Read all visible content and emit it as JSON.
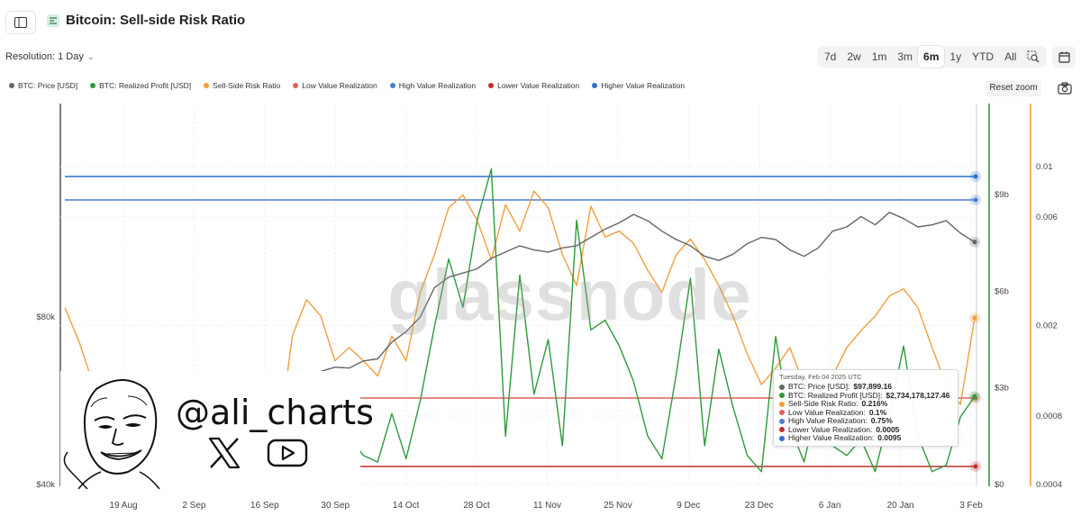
{
  "header": {
    "title": "Bitcoin: Sell-side Risk Ratio",
    "sidebar_toggle_icon": "sidebar-toggle-icon",
    "metric_icon": "metric-icon"
  },
  "controls": {
    "resolution_label": "Resolution: 1 Day",
    "ranges": [
      "7d",
      "2w",
      "1m",
      "3m",
      "6m",
      "1y",
      "YTD",
      "All"
    ],
    "active_range": "6m",
    "zoom_icon": "zoom-select-icon",
    "calendar_icon": "calendar-icon",
    "reset_zoom": "Reset zoom",
    "camera_icon": "camera-icon"
  },
  "legend": [
    {
      "label": "BTC: Price [USD]",
      "color": "#666666"
    },
    {
      "label": "BTC: Realized Profit [USD]",
      "color": "#2e9a3a"
    },
    {
      "label": "Sell-Side Risk Ratio",
      "color": "#f29e3d"
    },
    {
      "label": "Low Value Realization",
      "color": "#e0605a"
    },
    {
      "label": "High Value Realization",
      "color": "#4a7fd4"
    },
    {
      "label": "Lower Value Realization",
      "color": "#c0312b"
    },
    {
      "label": "Higher Value Realization",
      "color": "#2f6fcf"
    }
  ],
  "watermark": "glassnode",
  "tooltip": {
    "date": "Tuesday, Feb 04 2025 UTC",
    "rows": [
      {
        "label": "BTC: Price [USD]:",
        "value": "$97,899.16",
        "color": "#666666"
      },
      {
        "label": "BTC: Realized Profit [USD]:",
        "value": "$2,734,178,127.46",
        "color": "#2e9a3a"
      },
      {
        "label": "Sell-Side Risk Ratio:",
        "value": "0.216%",
        "color": "#f29e3d"
      },
      {
        "label": "Low Value Realization:",
        "value": "0.1%",
        "color": "#e0605a"
      },
      {
        "label": "High Value Realization:",
        "value": "0.75%",
        "color": "#4a7fd4"
      },
      {
        "label": "Lower Value Realization:",
        "value": "0.0005",
        "color": "#c0312b"
      },
      {
        "label": "Higher Value Realization:",
        "value": "0.0095",
        "color": "#2f6fcf"
      }
    ]
  },
  "overlay": {
    "handle": "@ali_charts",
    "x_icon": "x-logo-icon",
    "youtube_icon": "youtube-logo-icon"
  },
  "chart_data": {
    "type": "line",
    "x_ticks": [
      "19 Aug",
      "2 Sep",
      "16 Sep",
      "30 Sep",
      "14 Oct",
      "28 Oct",
      "11 Nov",
      "25 Nov",
      "9 Dec",
      "23 Dec",
      "6 Jan",
      "20 Jan",
      "3 Feb"
    ],
    "price_axis_ticks": [
      "$80k",
      "$40k"
    ],
    "profit_axis_ticks": [
      "$9b",
      "$6b",
      "$3b",
      "$0"
    ],
    "ratio_axis_ticks": [
      "0.01",
      "0.006",
      "0.002",
      "0.0008",
      "0.0004"
    ],
    "ratio_scale": "log",
    "thresholds": {
      "higher_value_realization": 0.0095,
      "high_value_realization": 0.0075,
      "low_value_realization": 0.001,
      "lower_value_realization": 0.0005
    },
    "series": [
      {
        "name": "BTC: Price [USD]",
        "color": "#666666",
        "axis": "price",
        "values": [
          60000,
          59500,
          60500,
          58500,
          57500,
          58000,
          59000,
          60500,
          61000,
          61800,
          62500,
          63500,
          63000,
          62000,
          61000,
          60500,
          62500,
          65000,
          67000,
          68000,
          67800,
          69500,
          70000,
          74000,
          76500,
          80000,
          87000,
          89500,
          90500,
          91500,
          94000,
          95500,
          97000,
          96000,
          95500,
          96500,
          97000,
          99000,
          101000,
          102500,
          104500,
          103000,
          100500,
          98500,
          97000,
          94500,
          93500,
          95000,
          97500,
          99000,
          98500,
          96000,
          94500,
          96500,
          100500,
          101500,
          104000,
          102000,
          105000,
          103500,
          101500,
          102000,
          103000,
          100000,
          97899.16
        ]
      },
      {
        "name": "BTC: Realized Profit [USD]",
        "color": "#2e9a3a",
        "axis": "profit",
        "unit": "billion USD",
        "values": [
          0.2,
          0.3,
          0.4,
          0.2,
          0.5,
          0.3,
          0.3,
          0.6,
          0.4,
          0.3,
          0.8,
          0.2,
          0.5,
          0.4,
          0.6,
          0.3,
          1.2,
          2.0,
          1.6,
          0.9,
          1.5,
          0.9,
          0.7,
          2.2,
          0.8,
          2.6,
          4.9,
          7.0,
          5.5,
          8.2,
          9.8,
          1.5,
          6.5,
          2.8,
          4.5,
          1.2,
          8.2,
          4.8,
          5.1,
          4.3,
          3.2,
          1.5,
          0.8,
          3.4,
          6.4,
          1.2,
          4.2,
          2.4,
          0.9,
          0.4,
          4.6,
          1.8,
          0.7,
          2.7,
          1.2,
          0.9,
          1.4,
          0.4,
          2.2,
          4.3,
          1.5,
          0.4,
          0.6,
          2.1,
          2.73
        ]
      },
      {
        "name": "Sell-Side Risk Ratio",
        "color": "#f29e3d",
        "axis": "ratio",
        "values": [
          0.0024,
          0.0017,
          0.0011,
          0.0009,
          0.00085,
          0.0009,
          0.0008,
          0.00095,
          0.0009,
          0.00085,
          0.0009,
          0.0012,
          0.0009,
          0.0008,
          0.0007,
          0.0006,
          0.0018,
          0.0026,
          0.0022,
          0.0014,
          0.0016,
          0.0014,
          0.0012,
          0.0018,
          0.0014,
          0.0028,
          0.0041,
          0.0066,
          0.0075,
          0.0058,
          0.0039,
          0.0068,
          0.0052,
          0.0078,
          0.0066,
          0.0041,
          0.003,
          0.0067,
          0.0049,
          0.0052,
          0.0046,
          0.0035,
          0.0028,
          0.0041,
          0.0048,
          0.0039,
          0.003,
          0.0022,
          0.0015,
          0.0011,
          0.0013,
          0.0016,
          0.0011,
          0.0009,
          0.0012,
          0.0016,
          0.0019,
          0.0022,
          0.0027,
          0.0029,
          0.0024,
          0.0016,
          0.0011,
          0.0009,
          0.00216
        ]
      }
    ]
  }
}
